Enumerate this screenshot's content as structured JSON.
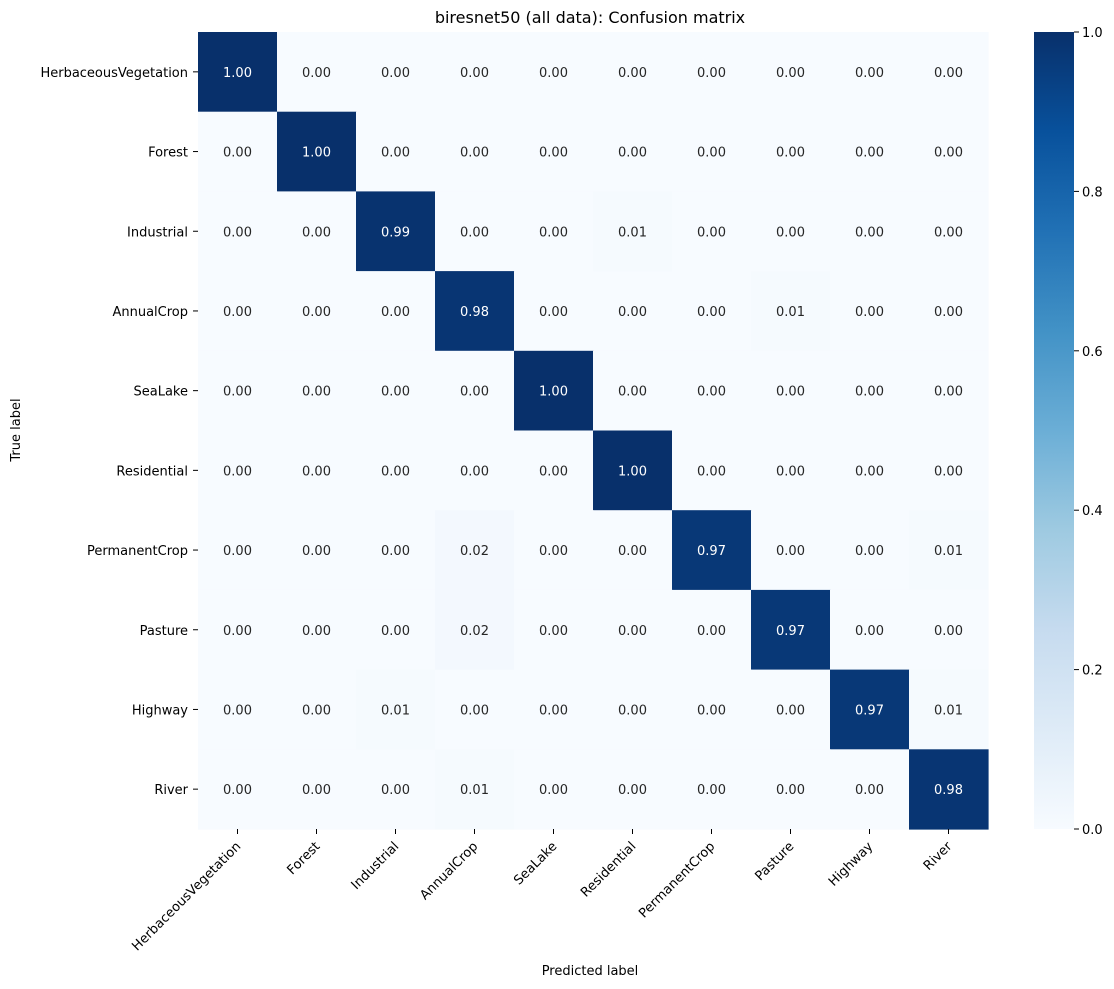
{
  "chart_data": {
    "type": "heatmap",
    "title": "biresnet50 (all data): Confusion matrix",
    "xlabel": "Predicted label",
    "ylabel": "True label",
    "row_labels": [
      "HerbaceousVegetation",
      "Forest",
      "Industrial",
      "AnnualCrop",
      "SeaLake",
      "Residential",
      "PermanentCrop",
      "Pasture",
      "Highway",
      "River"
    ],
    "col_labels": [
      "HerbaceousVegetation",
      "Forest",
      "Industrial",
      "AnnualCrop",
      "SeaLake",
      "Residential",
      "PermanentCrop",
      "Pasture",
      "Highway",
      "River"
    ],
    "values": [
      [
        1.0,
        0.0,
        0.0,
        0.0,
        0.0,
        0.0,
        0.0,
        0.0,
        0.0,
        0.0
      ],
      [
        0.0,
        1.0,
        0.0,
        0.0,
        0.0,
        0.0,
        0.0,
        0.0,
        0.0,
        0.0
      ],
      [
        0.0,
        0.0,
        0.99,
        0.0,
        0.0,
        0.01,
        0.0,
        0.0,
        0.0,
        0.0
      ],
      [
        0.0,
        0.0,
        0.0,
        0.98,
        0.0,
        0.0,
        0.0,
        0.01,
        0.0,
        0.0
      ],
      [
        0.0,
        0.0,
        0.0,
        0.0,
        1.0,
        0.0,
        0.0,
        0.0,
        0.0,
        0.0
      ],
      [
        0.0,
        0.0,
        0.0,
        0.0,
        0.0,
        1.0,
        0.0,
        0.0,
        0.0,
        0.0
      ],
      [
        0.0,
        0.0,
        0.0,
        0.02,
        0.0,
        0.0,
        0.97,
        0.0,
        0.0,
        0.01
      ],
      [
        0.0,
        0.0,
        0.0,
        0.02,
        0.0,
        0.0,
        0.0,
        0.97,
        0.0,
        0.0
      ],
      [
        0.0,
        0.0,
        0.01,
        0.0,
        0.0,
        0.0,
        0.0,
        0.0,
        0.97,
        0.01
      ],
      [
        0.0,
        0.0,
        0.0,
        0.01,
        0.0,
        0.0,
        0.0,
        0.0,
        0.0,
        0.98
      ]
    ],
    "colorbar": {
      "range": [
        0,
        1
      ],
      "ticks": [
        0.0,
        0.2,
        0.4,
        0.6,
        0.8,
        1.0
      ],
      "tick_labels": [
        "0.0",
        "0.2",
        "0.4",
        "0.6",
        "0.8",
        "1.0"
      ],
      "colormap": "Blues"
    }
  }
}
